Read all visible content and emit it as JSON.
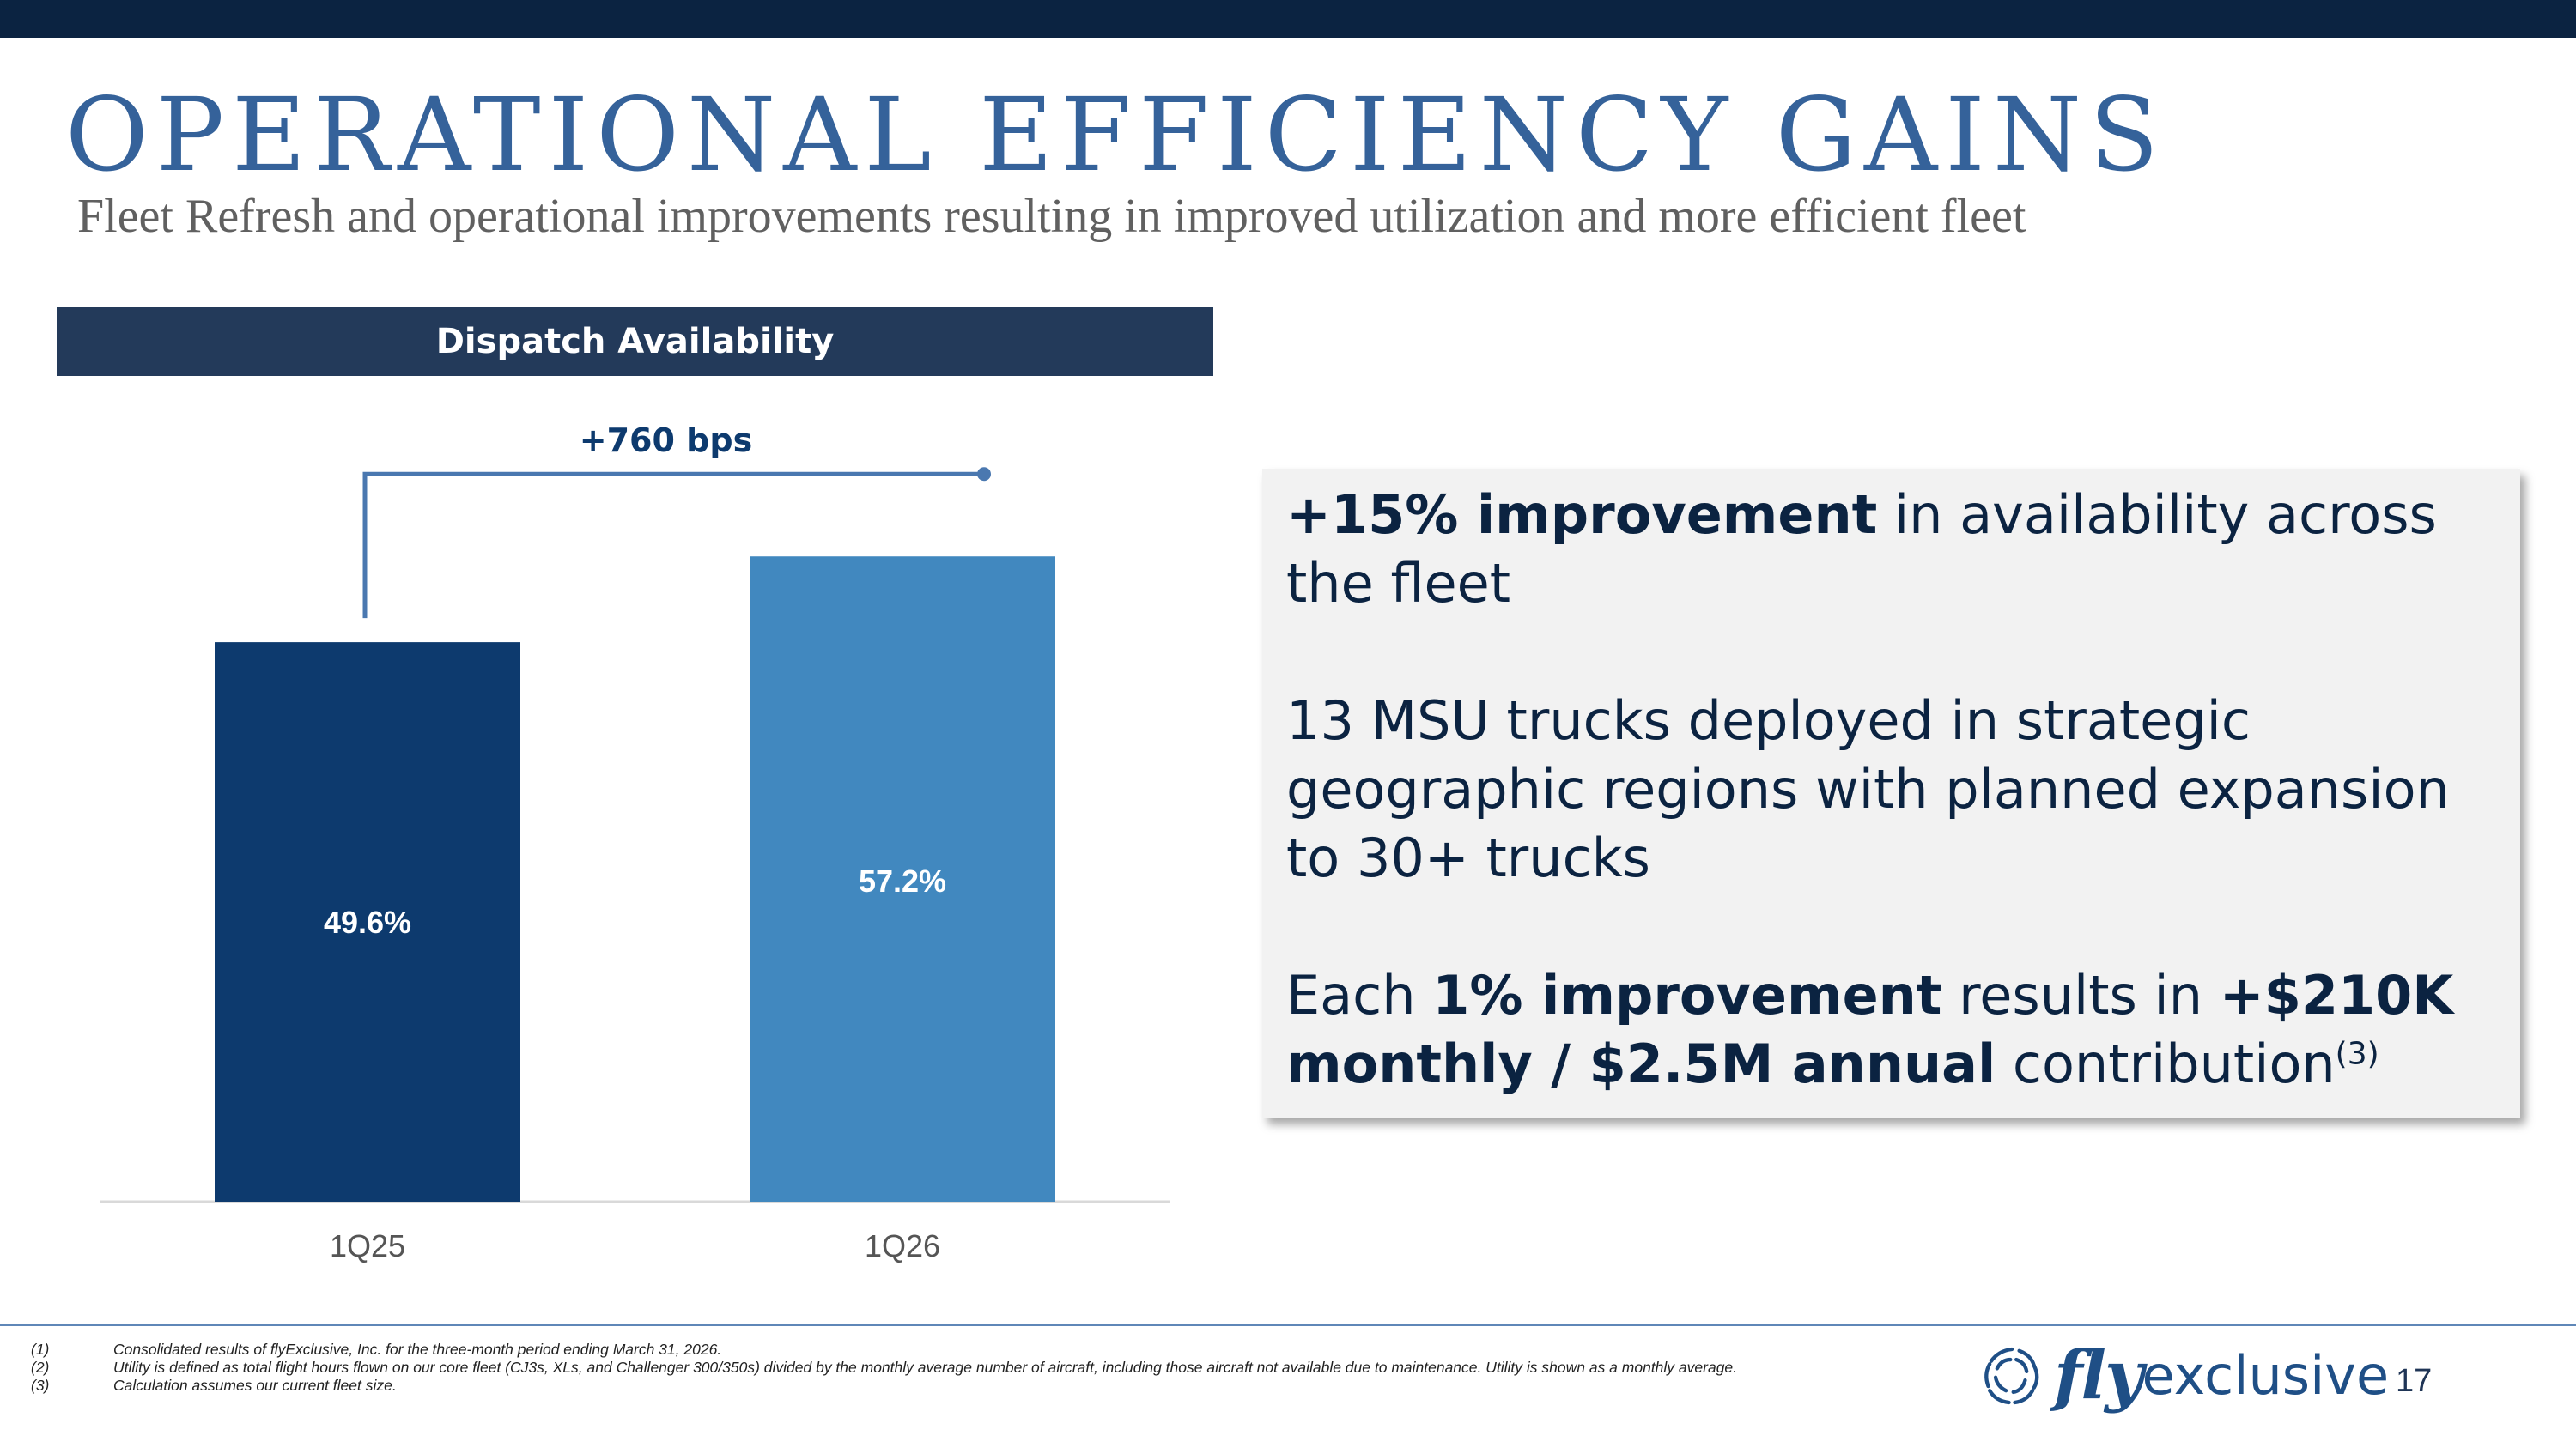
{
  "slide": {
    "title": "OPERATIONAL EFFICIENCY GAINS",
    "subtitle": "Fleet Refresh and operational improvements resulting in improved utilization and more efficient fleet",
    "page_number": "17"
  },
  "chart_data": {
    "type": "bar",
    "title": "Dispatch Availability",
    "categories": [
      "1Q25",
      "1Q26"
    ],
    "values": [
      49.6,
      57.2
    ],
    "data_labels": [
      "49.6%",
      "57.2%"
    ],
    "bar_colors": [
      "#0d3a6e",
      "#4188bf"
    ],
    "ylim": [
      0,
      70
    ],
    "grid": false,
    "annotation": {
      "label": "+760 bps",
      "color": "#4a78b0"
    }
  },
  "callout": {
    "p1": {
      "bold": "+15% improvement",
      "rest": " in availability across the fleet"
    },
    "p2": "13 MSU trucks deployed in strategic geographic regions with planned expansion to 30+ trucks",
    "p3": {
      "t1": "Each ",
      "b1": "1% improvement",
      "t2": " results in ",
      "b2": "+$210K monthly / $2.5M annual",
      "t3": " contribution",
      "sup": "(3)"
    }
  },
  "footnotes": [
    {
      "num": "(1)",
      "text": "Consolidated results of flyExclusive, Inc. for the three-month period ending March 31, 2026."
    },
    {
      "num": "(2)",
      "text": "Utility is defined as total flight hours flown on our core fleet (CJ3s, XLs, and Challenger 300/350s) divided by the monthly average number of aircraft, including those aircraft not available due to maintenance.  Utility is shown as a monthly average."
    },
    {
      "num": "(3)",
      "text": "Calculation assumes our current fleet size."
    }
  ],
  "logo": {
    "fly": "fly",
    "rest": "exclusive"
  },
  "colors": {
    "navy": "#0b2341",
    "title_blue": "#35629a",
    "accent_blue": "#4188bf",
    "dark_bar": "#0d3a6e"
  }
}
